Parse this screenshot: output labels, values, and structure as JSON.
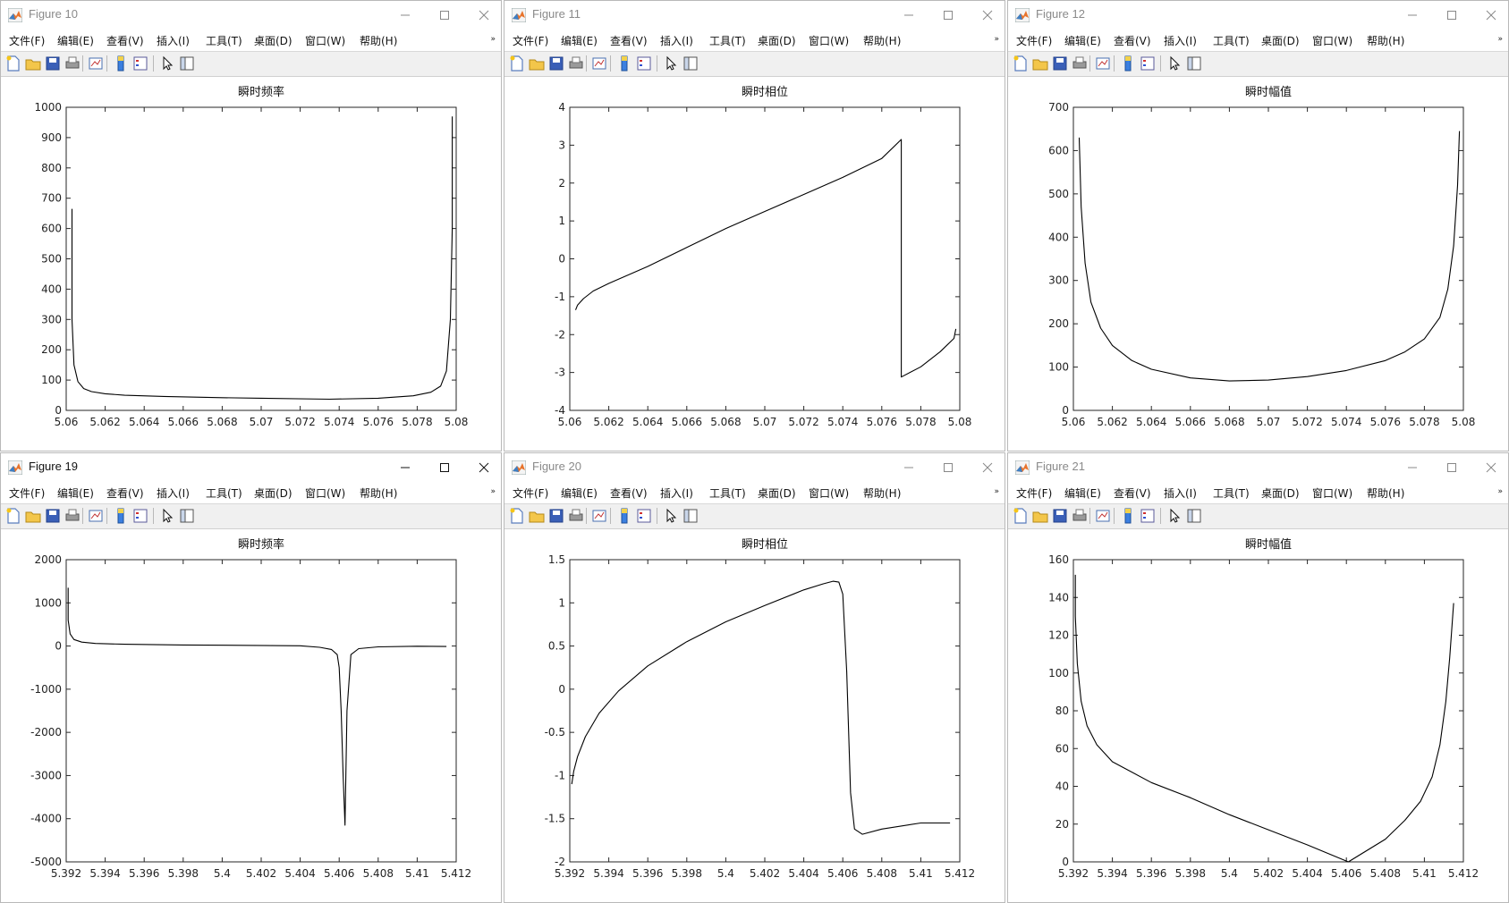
{
  "menu": [
    "文件(F)",
    "编辑(E)",
    "查看(V)",
    "插入(I)",
    "工具(T)",
    "桌面(D)",
    "窗口(W)",
    "帮助(H)"
  ],
  "menu_overflow": "»",
  "toolbar_icons": [
    "new-figure-icon",
    "open-file-icon",
    "save-icon",
    "print-icon",
    "link-plot-icon",
    "insert-colorbar-icon",
    "insert-legend-icon",
    "edit-plot-arrow-icon",
    "property-inspector-icon"
  ],
  "window_controls": [
    "minimize-icon",
    "maximize-icon",
    "close-icon"
  ],
  "colors": {
    "line": "#000000",
    "axes": "#262626",
    "title_inactive": "#8a8a8a",
    "title_active": "#111111",
    "toolbar_bg": "#f0f0f0"
  },
  "windows": [
    {
      "title": "Figure 10",
      "active": false,
      "col": 0,
      "row": 0,
      "chart_data": {
        "type": "line",
        "title": "瞬时频率",
        "xlim": [
          5.06,
          5.08
        ],
        "ylim": [
          0,
          1000
        ],
        "xticks": [
          "5.06",
          "5.062",
          "5.064",
          "5.066",
          "5.068",
          "5.07",
          "5.072",
          "5.074",
          "5.076",
          "5.078",
          "5.08"
        ],
        "yticks": [
          "0",
          "100",
          "200",
          "300",
          "400",
          "500",
          "600",
          "700",
          "800",
          "900",
          "1000"
        ],
        "series": [
          {
            "x": [
              5.0603,
              5.0603,
              5.0604,
              5.0606,
              5.0609,
              5.0613,
              5.062,
              5.063,
              5.065,
              5.068,
              5.07,
              5.0735,
              5.076,
              5.0778,
              5.0787,
              5.0792,
              5.0795,
              5.0797,
              5.0798,
              5.0798
            ],
            "y": [
              665,
              300,
              150,
              95,
              72,
              62,
              55,
              50,
              46,
              42,
              40,
              37,
              40,
              48,
              60,
              80,
              130,
              300,
              600,
              970
            ]
          }
        ]
      }
    },
    {
      "title": "Figure 11",
      "active": false,
      "col": 1,
      "row": 0,
      "chart_data": {
        "type": "line",
        "title": "瞬时相位",
        "xlim": [
          5.06,
          5.08
        ],
        "ylim": [
          -4,
          4
        ],
        "xticks": [
          "5.06",
          "5.062",
          "5.064",
          "5.066",
          "5.068",
          "5.07",
          "5.072",
          "5.074",
          "5.076",
          "5.078",
          "5.08"
        ],
        "yticks": [
          "-4",
          "-3",
          "-2",
          "-1",
          "0",
          "1",
          "2",
          "3",
          "4"
        ],
        "series": [
          {
            "x": [
              5.0603,
              5.0604,
              5.0607,
              5.0612,
              5.062,
              5.064,
              5.066,
              5.068,
              5.07,
              5.072,
              5.074,
              5.076,
              5.077,
              5.077,
              5.078,
              5.079,
              5.0797,
              5.0798
            ],
            "y": [
              -1.35,
              -1.22,
              -1.05,
              -0.85,
              -0.65,
              -0.2,
              0.3,
              0.8,
              1.25,
              1.7,
              2.15,
              2.65,
              3.15,
              -3.12,
              -2.85,
              -2.45,
              -2.1,
              -1.85
            ]
          }
        ]
      }
    },
    {
      "title": "Figure 12",
      "active": false,
      "col": 2,
      "row": 0,
      "chart_data": {
        "type": "line",
        "title": "瞬时幅值",
        "xlim": [
          5.06,
          5.08
        ],
        "ylim": [
          0,
          700
        ],
        "xticks": [
          "5.06",
          "5.062",
          "5.064",
          "5.066",
          "5.068",
          "5.07",
          "5.072",
          "5.074",
          "5.076",
          "5.078",
          "5.08"
        ],
        "yticks": [
          "0",
          "100",
          "200",
          "300",
          "400",
          "500",
          "600",
          "700"
        ],
        "series": [
          {
            "x": [
              5.0603,
              5.0604,
              5.0606,
              5.0609,
              5.0614,
              5.062,
              5.063,
              5.064,
              5.066,
              5.068,
              5.07,
              5.072,
              5.074,
              5.076,
              5.077,
              5.078,
              5.0788,
              5.0792,
              5.0795,
              5.0797,
              5.0798
            ],
            "y": [
              630,
              470,
              340,
              250,
              190,
              150,
              115,
              95,
              75,
              68,
              70,
              78,
              92,
              115,
              135,
              165,
              215,
              280,
              380,
              520,
              645
            ]
          }
        ]
      }
    },
    {
      "title": "Figure 19",
      "active": true,
      "col": 0,
      "row": 1,
      "chart_data": {
        "type": "line",
        "title": "瞬时频率",
        "xlim": [
          5.392,
          5.412
        ],
        "ylim": [
          -5000,
          2000
        ],
        "xticks": [
          "5.392",
          "5.394",
          "5.396",
          "5.398",
          "5.4",
          "5.402",
          "5.404",
          "5.406",
          "5.408",
          "5.41",
          "5.412"
        ],
        "yticks": [
          "-5000",
          "-4000",
          "-3000",
          "-2000",
          "-1000",
          "0",
          "1000",
          "2000"
        ],
        "series": [
          {
            "x": [
              5.3921,
              5.3921,
              5.3922,
              5.3924,
              5.3928,
              5.3935,
              5.395,
              5.398,
              5.401,
              5.404,
              5.405,
              5.4056,
              5.4059,
              5.406,
              5.4061,
              5.4062,
              5.4063,
              5.4064,
              5.4066,
              5.407,
              5.408,
              5.41,
              5.4115
            ],
            "y": [
              1350,
              600,
              280,
              150,
              90,
              60,
              40,
              25,
              15,
              5,
              -30,
              -80,
              -200,
              -500,
              -1500,
              -3000,
              -4150,
              -1500,
              -200,
              -60,
              -20,
              -5,
              -10
            ]
          }
        ]
      }
    },
    {
      "title": "Figure 20",
      "active": false,
      "col": 1,
      "row": 1,
      "chart_data": {
        "type": "line",
        "title": "瞬时相位",
        "xlim": [
          5.392,
          5.412
        ],
        "ylim": [
          -2,
          1.5
        ],
        "xticks": [
          "5.392",
          "5.394",
          "5.396",
          "5.398",
          "5.4",
          "5.402",
          "5.404",
          "5.406",
          "5.408",
          "5.41",
          "5.412"
        ],
        "yticks": [
          "-2",
          "-1.5",
          "-1",
          "-0.5",
          "0",
          "0.5",
          "1",
          "1.5"
        ],
        "series": [
          {
            "x": [
              5.3921,
              5.3922,
              5.3924,
              5.3928,
              5.3935,
              5.3945,
              5.396,
              5.398,
              5.4,
              5.402,
              5.404,
              5.405,
              5.4055,
              5.4058,
              5.406,
              5.4062,
              5.4064,
              5.4066,
              5.407,
              5.408,
              5.41,
              5.4115
            ],
            "y": [
              -1.1,
              -0.95,
              -0.78,
              -0.55,
              -0.28,
              -0.02,
              0.27,
              0.55,
              0.78,
              0.97,
              1.15,
              1.22,
              1.25,
              1.24,
              1.1,
              0.2,
              -1.2,
              -1.62,
              -1.68,
              -1.62,
              -1.55,
              -1.55
            ]
          }
        ]
      }
    },
    {
      "title": "Figure 21",
      "active": false,
      "col": 2,
      "row": 1,
      "chart_data": {
        "type": "line",
        "title": "瞬时幅值",
        "xlim": [
          5.392,
          5.412
        ],
        "ylim": [
          0,
          160
        ],
        "xticks": [
          "5.392",
          "5.394",
          "5.396",
          "5.398",
          "5.4",
          "5.402",
          "5.404",
          "5.406",
          "5.408",
          "5.41",
          "5.412"
        ],
        "yticks": [
          "0",
          "20",
          "40",
          "60",
          "80",
          "100",
          "120",
          "140",
          "160"
        ],
        "series": [
          {
            "x": [
              5.3921,
              5.3921,
              5.3922,
              5.3924,
              5.3927,
              5.3932,
              5.394,
              5.396,
              5.398,
              5.4,
              5.402,
              5.404,
              5.4061,
              5.408,
              5.409,
              5.4098,
              5.4104,
              5.4108,
              5.4111,
              5.4113,
              5.4115
            ],
            "y": [
              152,
              130,
              105,
              85,
              72,
              62,
              53,
              42,
              34,
              25,
              17,
              9,
              0,
              12,
              22,
              32,
              45,
              62,
              85,
              108,
              137
            ]
          }
        ]
      }
    }
  ]
}
